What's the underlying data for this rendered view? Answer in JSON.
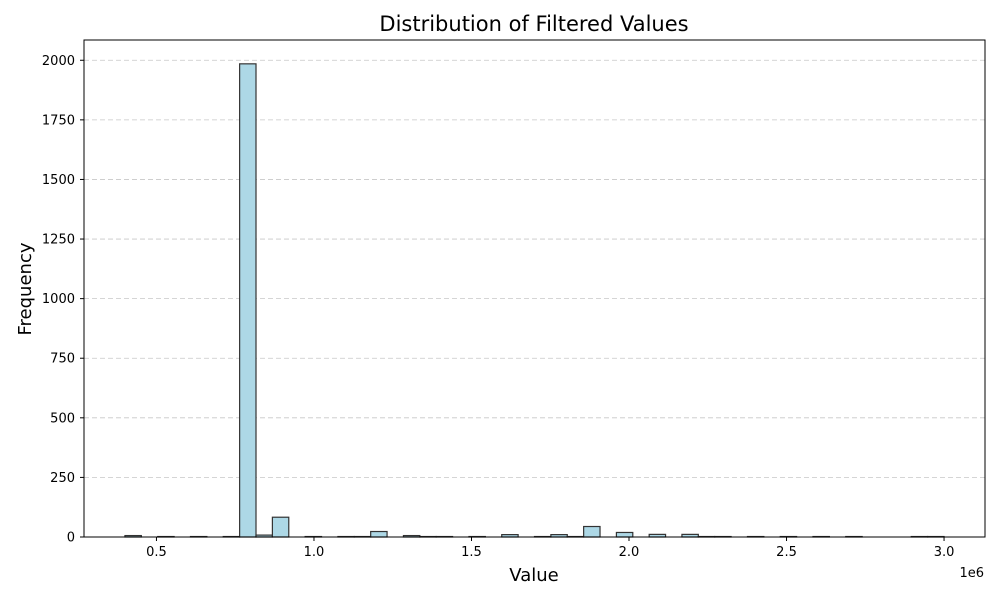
{
  "chart_data": {
    "type": "bar",
    "title": "Distribution of Filtered Values",
    "xlabel": "Value",
    "ylabel": "Frequency",
    "x_offset_text": "1e6",
    "xlim": [
      270000,
      3130000
    ],
    "ylim": [
      0,
      2085
    ],
    "grid": "y",
    "bar_color": "#add8e6",
    "edge_color": "#333333",
    "x_ticks": [
      {
        "value": 500000,
        "label": "0.5"
      },
      {
        "value": 1000000,
        "label": "1.0"
      },
      {
        "value": 1500000,
        "label": "1.5"
      },
      {
        "value": 2000000,
        "label": "2.0"
      },
      {
        "value": 2500000,
        "label": "2.5"
      },
      {
        "value": 3000000,
        "label": "3.0"
      }
    ],
    "y_ticks": [
      {
        "value": 0,
        "label": "0"
      },
      {
        "value": 250,
        "label": "250"
      },
      {
        "value": 500,
        "label": "500"
      },
      {
        "value": 750,
        "label": "750"
      },
      {
        "value": 1000,
        "label": "1000"
      },
      {
        "value": 1250,
        "label": "1250"
      },
      {
        "value": 1500,
        "label": "1500"
      },
      {
        "value": 1750,
        "label": "1750"
      },
      {
        "value": 2000,
        "label": "2000"
      }
    ],
    "bins": [
      {
        "start": 400000,
        "end": 452000,
        "count": 6
      },
      {
        "start": 504000,
        "end": 556000,
        "count": 2
      },
      {
        "start": 608000,
        "end": 660000,
        "count": 2
      },
      {
        "start": 712000,
        "end": 764000,
        "count": 2
      },
      {
        "start": 764000,
        "end": 816000,
        "count": 1985
      },
      {
        "start": 816000,
        "end": 868000,
        "count": 8
      },
      {
        "start": 868000,
        "end": 920000,
        "count": 83
      },
      {
        "start": 972000,
        "end": 1024000,
        "count": 2
      },
      {
        "start": 1076000,
        "end": 1128000,
        "count": 2
      },
      {
        "start": 1128000,
        "end": 1180000,
        "count": 2
      },
      {
        "start": 1180000,
        "end": 1232000,
        "count": 23
      },
      {
        "start": 1284000,
        "end": 1336000,
        "count": 6
      },
      {
        "start": 1336000,
        "end": 1388000,
        "count": 2
      },
      {
        "start": 1388000,
        "end": 1440000,
        "count": 2
      },
      {
        "start": 1492000,
        "end": 1544000,
        "count": 2
      },
      {
        "start": 1596000,
        "end": 1648000,
        "count": 10
      },
      {
        "start": 1700000,
        "end": 1752000,
        "count": 2
      },
      {
        "start": 1752000,
        "end": 1804000,
        "count": 10
      },
      {
        "start": 1804000,
        "end": 1856000,
        "count": 2
      },
      {
        "start": 1856000,
        "end": 1908000,
        "count": 44
      },
      {
        "start": 1960000,
        "end": 2012000,
        "count": 19
      },
      {
        "start": 2064000,
        "end": 2116000,
        "count": 11
      },
      {
        "start": 2168000,
        "end": 2220000,
        "count": 11
      },
      {
        "start": 2220000,
        "end": 2272000,
        "count": 2
      },
      {
        "start": 2272000,
        "end": 2324000,
        "count": 2
      },
      {
        "start": 2376000,
        "end": 2428000,
        "count": 2
      },
      {
        "start": 2480000,
        "end": 2532000,
        "count": 2
      },
      {
        "start": 2584000,
        "end": 2636000,
        "count": 2
      },
      {
        "start": 2688000,
        "end": 2740000,
        "count": 2
      },
      {
        "start": 2896000,
        "end": 2948000,
        "count": 2
      },
      {
        "start": 2948000,
        "end": 3000000,
        "count": 2
      }
    ]
  }
}
